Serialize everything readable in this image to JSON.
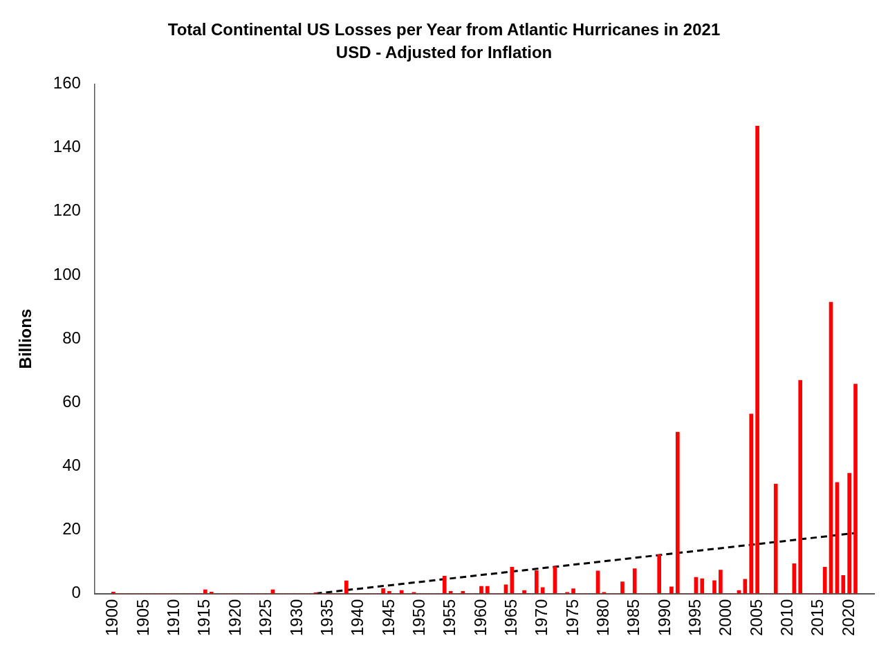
{
  "chart_data": {
    "type": "bar",
    "title": "Total Continental US Losses per Year from Atlantic Hurricanes in 2021",
    "subtitle": "USD - Adjusted for Inflation",
    "ylabel": "Billions",
    "xlim": [
      1899.5,
      2021.5
    ],
    "xticks": [
      1900,
      1905,
      1910,
      1915,
      1920,
      1925,
      1930,
      1935,
      1940,
      1945,
      1950,
      1955,
      1960,
      1965,
      1970,
      1975,
      1980,
      1985,
      1990,
      1995,
      2000,
      2005,
      2010,
      2015,
      2020
    ],
    "ylim": [
      0,
      160
    ],
    "yticks": [
      0,
      20,
      40,
      60,
      80,
      100,
      120,
      140,
      160
    ],
    "series": [
      {
        "color": "#ff0000",
        "x": [
          1900,
          1901,
          1902,
          1903,
          1904,
          1905,
          1906,
          1907,
          1908,
          1909,
          1910,
          1911,
          1912,
          1913,
          1914,
          1915,
          1916,
          1917,
          1918,
          1919,
          1920,
          1921,
          1922,
          1923,
          1924,
          1925,
          1926,
          1927,
          1928,
          1929,
          1930,
          1931,
          1932,
          1933,
          1934,
          1935,
          1936,
          1937,
          1938,
          1939,
          1940,
          1941,
          1942,
          1943,
          1944,
          1945,
          1946,
          1947,
          1948,
          1949,
          1950,
          1951,
          1952,
          1953,
          1954,
          1955,
          1956,
          1957,
          1958,
          1959,
          1960,
          1961,
          1962,
          1963,
          1964,
          1965,
          1966,
          1967,
          1968,
          1969,
          1970,
          1971,
          1972,
          1973,
          1974,
          1975,
          1976,
          1977,
          1978,
          1979,
          1980,
          1981,
          1982,
          1983,
          1984,
          1985,
          1986,
          1987,
          1988,
          1989,
          1990,
          1991,
          1992,
          1993,
          1994,
          1995,
          1996,
          1997,
          1998,
          1999,
          2000,
          2001,
          2002,
          2003,
          2004,
          2005,
          2006,
          2007,
          2008,
          2009,
          2010,
          2011,
          2012,
          2013,
          2014,
          2015,
          2016,
          2017,
          2018,
          2019,
          2020,
          2021
        ],
        "values": [
          0.5,
          0,
          0,
          0,
          0,
          0,
          0,
          0,
          0,
          0,
          0,
          0,
          0,
          0,
          0,
          1.2,
          0.5,
          0,
          0,
          0,
          0,
          0,
          0,
          0,
          0,
          0,
          1.2,
          0,
          0,
          0,
          0,
          0,
          0,
          0.3,
          0,
          0,
          0,
          0,
          4,
          0,
          0,
          0,
          0,
          0,
          1.6,
          0.7,
          0,
          1,
          0,
          0.4,
          0,
          0,
          0,
          0,
          5.5,
          0.7,
          0,
          0.7,
          0,
          0,
          2.3,
          2.3,
          0,
          0,
          2.8,
          8.3,
          0,
          1,
          0,
          7.2,
          1.9,
          0,
          8.5,
          0,
          0.4,
          1.5,
          0,
          0,
          0,
          7.1,
          0.4,
          0,
          0,
          3.7,
          0,
          7.8,
          0,
          0,
          0,
          12.2,
          0,
          2.1,
          50.7,
          0,
          0,
          5.1,
          4.7,
          0,
          4.1,
          7.4,
          0,
          0,
          1,
          4.5,
          56.4,
          146.8,
          0,
          0,
          34.4,
          0,
          0,
          9.4,
          67,
          0,
          0,
          0,
          8.3,
          91.5,
          34.9,
          5.7,
          37.8,
          65.8
        ]
      },
      {
        "type": "line",
        "color": "#000000",
        "line_style": "dashed",
        "marker": "none",
        "x": [
          1933,
          2021
        ],
        "values": [
          0,
          19
        ]
      }
    ]
  }
}
